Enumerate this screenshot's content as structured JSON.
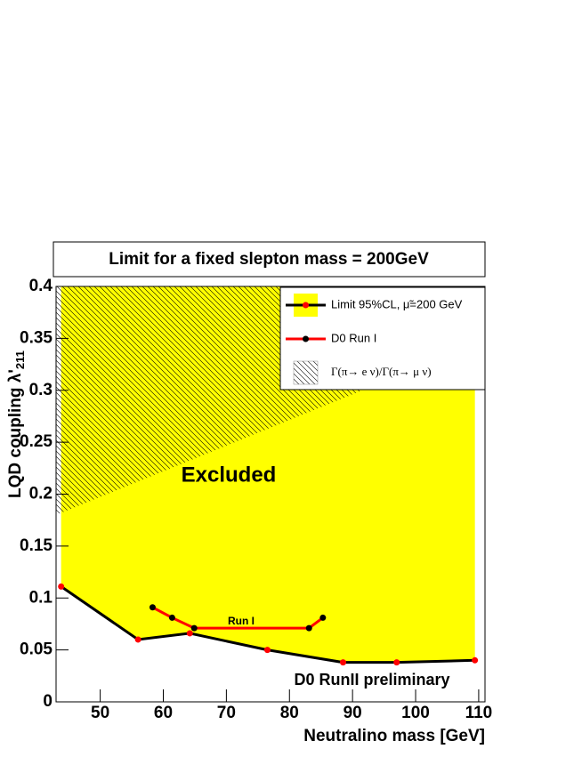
{
  "chart_data": {
    "type": "line",
    "title": "Limit for a fixed slepton mass = 200GeV",
    "xlabel": "Neutralino mass [GeV]",
    "ylabel": "LQD coupling λ'",
    "ylabel_subscript": "211",
    "annotations": [
      "Excluded",
      "Run I",
      "D0 RunII preliminary"
    ],
    "xlim": [
      43,
      111
    ],
    "xticks": [
      50,
      60,
      70,
      80,
      90,
      100,
      110
    ],
    "ylim": [
      0,
      0.4
    ],
    "yticks": [
      0,
      0.05,
      0.1,
      0.15,
      0.2,
      0.25,
      0.3,
      0.35,
      0.4
    ],
    "series": [
      {
        "name": "Limit 95%CL, μ̃=200 GeV",
        "color": "#000000",
        "marker_color": "#ff0000",
        "fill": "#ffff00",
        "x": [
          43.8,
          56.0,
          64.2,
          76.5,
          88.5,
          97.0,
          109.4
        ],
        "values": [
          0.111,
          0.06,
          0.066,
          0.05,
          0.038,
          0.038,
          0.04
        ]
      },
      {
        "name": "D0 Run I",
        "color": "#ff0000",
        "marker_color": "#000000",
        "x": [
          58.3,
          61.4,
          64.9,
          83.1,
          85.3
        ],
        "values": [
          0.091,
          0.081,
          0.071,
          0.071,
          0.081
        ]
      },
      {
        "name": "Γ(π→ e ν)/Γ(π→ μ ν)",
        "color": "#000000",
        "hatch": true,
        "x": [
          43,
          111
        ],
        "values": [
          0.18,
          0.348
        ]
      }
    ]
  }
}
